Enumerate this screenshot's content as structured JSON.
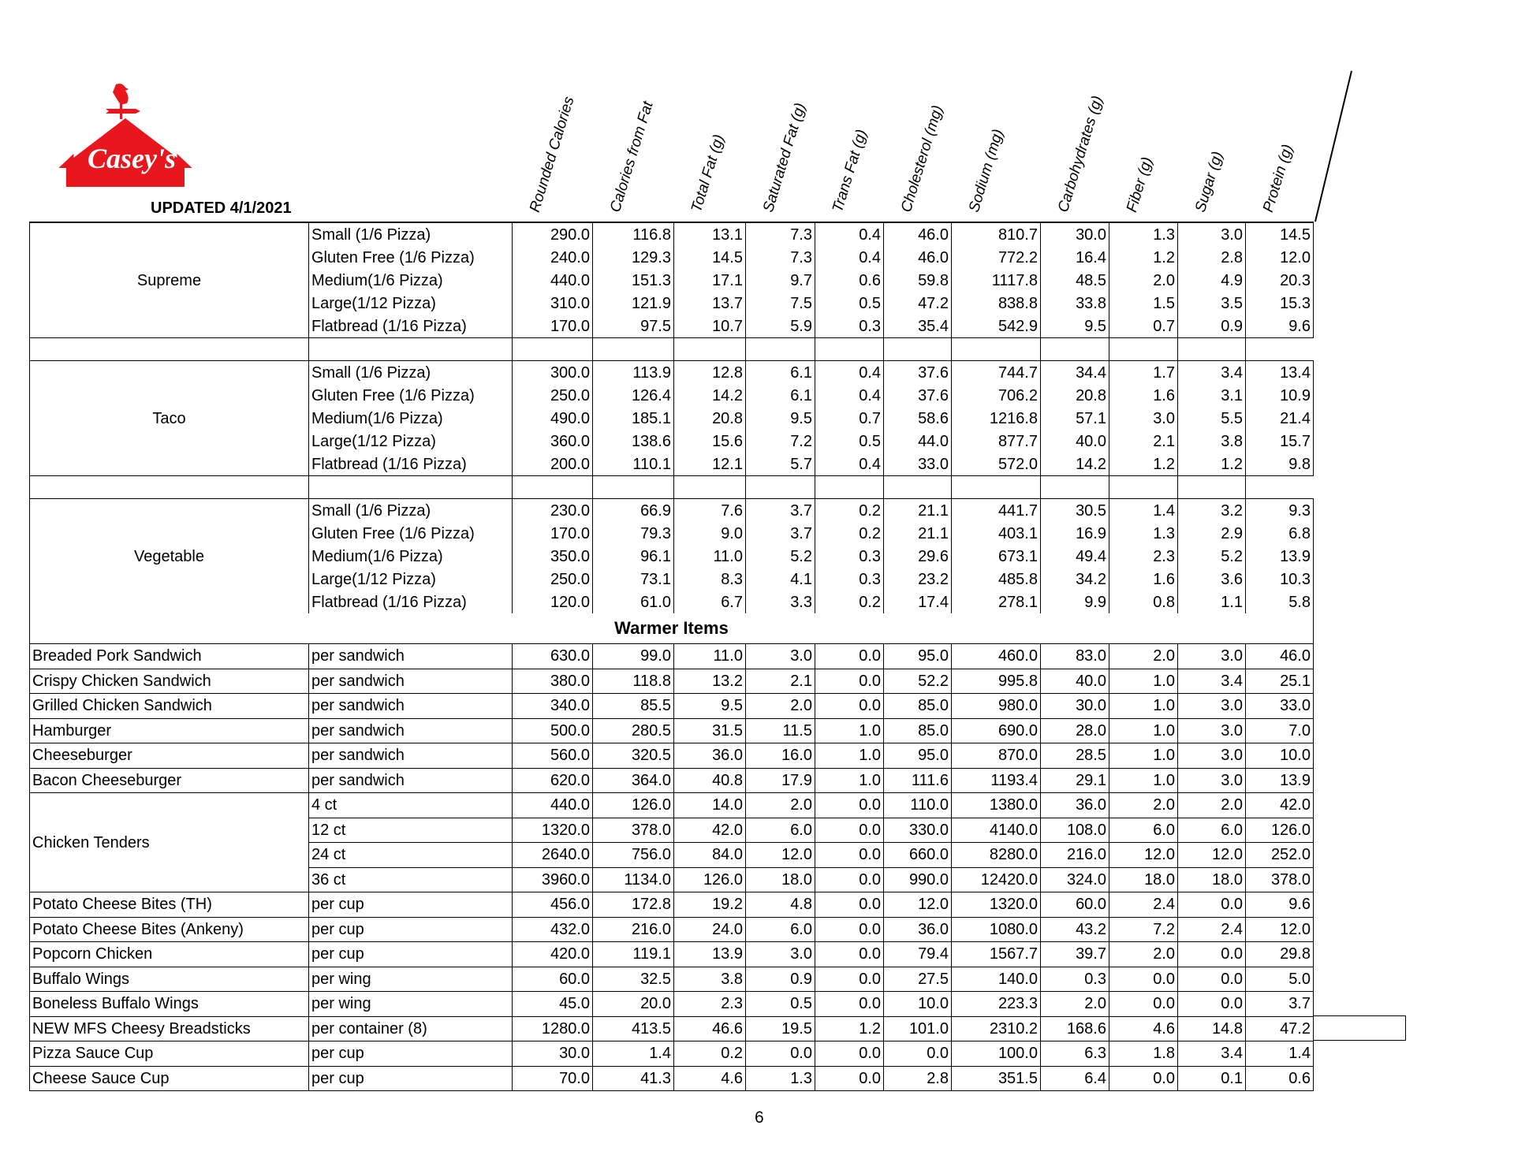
{
  "brand": {
    "logo_text": "Casey's",
    "red": "#e8161d"
  },
  "updated": "UPDATED 4/1/2021",
  "columns": [
    "Rounded Calories",
    "Calories from Fat",
    "Total Fat (g)",
    "Saturated Fat (g)",
    "Trans Fat (g)",
    "Cholesterol (mg)",
    "Sodium (mg)",
    "Carbohydrates (g)",
    "Fiber (g)",
    "Sugar (g)",
    "Protein (g)"
  ],
  "pizza_groups": [
    {
      "name": "Supreme",
      "rows": [
        {
          "size": "Small (1/6 Pizza)",
          "values": [
            "290.0",
            "116.8",
            "13.1",
            "7.3",
            "0.4",
            "46.0",
            "810.7",
            "30.0",
            "1.3",
            "3.0",
            "14.5"
          ]
        },
        {
          "size": "Gluten Free (1/6 Pizza)",
          "values": [
            "240.0",
            "129.3",
            "14.5",
            "7.3",
            "0.4",
            "46.0",
            "772.2",
            "16.4",
            "1.2",
            "2.8",
            "12.0"
          ]
        },
        {
          "size": "Medium(1/6 Pizza)",
          "values": [
            "440.0",
            "151.3",
            "17.1",
            "9.7",
            "0.6",
            "59.8",
            "1117.8",
            "48.5",
            "2.0",
            "4.9",
            "20.3"
          ]
        },
        {
          "size": "Large(1/12 Pizza)",
          "values": [
            "310.0",
            "121.9",
            "13.7",
            "7.5",
            "0.5",
            "47.2",
            "838.8",
            "33.8",
            "1.5",
            "3.5",
            "15.3"
          ]
        },
        {
          "size": "Flatbread (1/16 Pizza)",
          "values": [
            "170.0",
            "97.5",
            "10.7",
            "5.9",
            "0.3",
            "35.4",
            "542.9",
            "9.5",
            "0.7",
            "0.9",
            "9.6"
          ]
        }
      ]
    },
    {
      "name": "Taco",
      "rows": [
        {
          "size": "Small (1/6 Pizza)",
          "values": [
            "300.0",
            "113.9",
            "12.8",
            "6.1",
            "0.4",
            "37.6",
            "744.7",
            "34.4",
            "1.7",
            "3.4",
            "13.4"
          ]
        },
        {
          "size": "Gluten Free (1/6 Pizza)",
          "values": [
            "250.0",
            "126.4",
            "14.2",
            "6.1",
            "0.4",
            "37.6",
            "706.2",
            "20.8",
            "1.6",
            "3.1",
            "10.9"
          ]
        },
        {
          "size": "Medium(1/6 Pizza)",
          "values": [
            "490.0",
            "185.1",
            "20.8",
            "9.5",
            "0.7",
            "58.6",
            "1216.8",
            "57.1",
            "3.0",
            "5.5",
            "21.4"
          ]
        },
        {
          "size": "Large(1/12 Pizza)",
          "values": [
            "360.0",
            "138.6",
            "15.6",
            "7.2",
            "0.5",
            "44.0",
            "877.7",
            "40.0",
            "2.1",
            "3.8",
            "15.7"
          ]
        },
        {
          "size": "Flatbread (1/16 Pizza)",
          "values": [
            "200.0",
            "110.1",
            "12.1",
            "5.7",
            "0.4",
            "33.0",
            "572.0",
            "14.2",
            "1.2",
            "1.2",
            "9.8"
          ]
        }
      ]
    },
    {
      "name": "Vegetable",
      "rows": [
        {
          "size": "Small (1/6 Pizza)",
          "values": [
            "230.0",
            "66.9",
            "7.6",
            "3.7",
            "0.2",
            "21.1",
            "441.7",
            "30.5",
            "1.4",
            "3.2",
            "9.3"
          ]
        },
        {
          "size": "Gluten Free (1/6 Pizza)",
          "values": [
            "170.0",
            "79.3",
            "9.0",
            "3.7",
            "0.2",
            "21.1",
            "403.1",
            "16.9",
            "1.3",
            "2.9",
            "6.8"
          ]
        },
        {
          "size": "Medium(1/6 Pizza)",
          "values": [
            "350.0",
            "96.1",
            "11.0",
            "5.2",
            "0.3",
            "29.6",
            "673.1",
            "49.4",
            "2.3",
            "5.2",
            "13.9"
          ]
        },
        {
          "size": "Large(1/12 Pizza)",
          "values": [
            "250.0",
            "73.1",
            "8.3",
            "4.1",
            "0.3",
            "23.2",
            "485.8",
            "34.2",
            "1.6",
            "3.6",
            "10.3"
          ]
        },
        {
          "size": "Flatbread (1/16 Pizza)",
          "values": [
            "120.0",
            "61.0",
            "6.7",
            "3.3",
            "0.2",
            "17.4",
            "278.1",
            "9.9",
            "0.8",
            "1.1",
            "5.8"
          ]
        }
      ]
    }
  ],
  "warmer": {
    "title": "Warmer Items",
    "items": [
      {
        "name": "Breaded Pork Sandwich",
        "rows": [
          {
            "size": "per sandwich",
            "values": [
              "630.0",
              "99.0",
              "11.0",
              "3.0",
              "0.0",
              "95.0",
              "460.0",
              "83.0",
              "2.0",
              "3.0",
              "46.0"
            ]
          }
        ]
      },
      {
        "name": "Crispy Chicken Sandwich",
        "rows": [
          {
            "size": "per sandwich",
            "values": [
              "380.0",
              "118.8",
              "13.2",
              "2.1",
              "0.0",
              "52.2",
              "995.8",
              "40.0",
              "1.0",
              "3.4",
              "25.1"
            ]
          }
        ]
      },
      {
        "name": "Grilled Chicken Sandwich",
        "rows": [
          {
            "size": "per sandwich",
            "values": [
              "340.0",
              "85.5",
              "9.5",
              "2.0",
              "0.0",
              "85.0",
              "980.0",
              "30.0",
              "1.0",
              "3.0",
              "33.0"
            ]
          }
        ]
      },
      {
        "name": "Hamburger",
        "rows": [
          {
            "size": "per sandwich",
            "values": [
              "500.0",
              "280.5",
              "31.5",
              "11.5",
              "1.0",
              "85.0",
              "690.0",
              "28.0",
              "1.0",
              "3.0",
              "7.0"
            ]
          }
        ]
      },
      {
        "name": "Cheeseburger",
        "rows": [
          {
            "size": "per sandwich",
            "values": [
              "560.0",
              "320.5",
              "36.0",
              "16.0",
              "1.0",
              "95.0",
              "870.0",
              "28.5",
              "1.0",
              "3.0",
              "10.0"
            ]
          }
        ]
      },
      {
        "name": "Bacon Cheeseburger",
        "rows": [
          {
            "size": "per sandwich",
            "values": [
              "620.0",
              "364.0",
              "40.8",
              "17.9",
              "1.0",
              "111.6",
              "1193.4",
              "29.1",
              "1.0",
              "3.0",
              "13.9"
            ]
          }
        ]
      },
      {
        "name": "Chicken Tenders",
        "rows": [
          {
            "size": "4 ct",
            "values": [
              "440.0",
              "126.0",
              "14.0",
              "2.0",
              "0.0",
              "110.0",
              "1380.0",
              "36.0",
              "2.0",
              "2.0",
              "42.0"
            ]
          },
          {
            "size": "12 ct",
            "values": [
              "1320.0",
              "378.0",
              "42.0",
              "6.0",
              "0.0",
              "330.0",
              "4140.0",
              "108.0",
              "6.0",
              "6.0",
              "126.0"
            ]
          },
          {
            "size": "24 ct",
            "values": [
              "2640.0",
              "756.0",
              "84.0",
              "12.0",
              "0.0",
              "660.0",
              "8280.0",
              "216.0",
              "12.0",
              "12.0",
              "252.0"
            ]
          },
          {
            "size": "36 ct",
            "values": [
              "3960.0",
              "1134.0",
              "126.0",
              "18.0",
              "0.0",
              "990.0",
              "12420.0",
              "324.0",
              "18.0",
              "18.0",
              "378.0"
            ]
          }
        ]
      },
      {
        "name": "Potato Cheese Bites (TH)",
        "rows": [
          {
            "size": "per cup",
            "values": [
              "456.0",
              "172.8",
              "19.2",
              "4.8",
              "0.0",
              "12.0",
              "1320.0",
              "60.0",
              "2.4",
              "0.0",
              "9.6"
            ]
          }
        ]
      },
      {
        "name": "Potato Cheese Bites (Ankeny)",
        "rows": [
          {
            "size": "per cup",
            "values": [
              "432.0",
              "216.0",
              "24.0",
              "6.0",
              "0.0",
              "36.0",
              "1080.0",
              "43.2",
              "7.2",
              "2.4",
              "12.0"
            ]
          }
        ]
      },
      {
        "name": "Popcorn Chicken",
        "rows": [
          {
            "size": "per cup",
            "values": [
              "420.0",
              "119.1",
              "13.9",
              "3.0",
              "0.0",
              "79.4",
              "1567.7",
              "39.7",
              "2.0",
              "0.0",
              "29.8"
            ]
          }
        ]
      },
      {
        "name": "Buffalo Wings",
        "rows": [
          {
            "size": "per wing",
            "values": [
              "60.0",
              "32.5",
              "3.8",
              "0.9",
              "0.0",
              "27.5",
              "140.0",
              "0.3",
              "0.0",
              "0.0",
              "5.0"
            ]
          }
        ]
      },
      {
        "name": "Boneless Buffalo Wings",
        "rows": [
          {
            "size": "per wing",
            "values": [
              "45.0",
              "20.0",
              "2.3",
              "0.5",
              "0.0",
              "10.0",
              "223.3",
              "2.0",
              "0.0",
              "0.0",
              "3.7"
            ]
          }
        ]
      },
      {
        "name": "NEW MFS Cheesy Breadsticks",
        "rows": [
          {
            "size": "per container (8)",
            "values": [
              "1280.0",
              "413.5",
              "46.6",
              "19.5",
              "1.2",
              "101.0",
              "2310.2",
              "168.6",
              "4.6",
              "14.8",
              "47.2"
            ]
          }
        ]
      },
      {
        "name": "Pizza Sauce Cup",
        "rows": [
          {
            "size": "per cup",
            "values": [
              "30.0",
              "1.4",
              "0.2",
              "0.0",
              "0.0",
              "0.0",
              "100.0",
              "6.3",
              "1.8",
              "3.4",
              "1.4"
            ]
          }
        ]
      },
      {
        "name": "Cheese Sauce Cup",
        "rows": [
          {
            "size": "per cup",
            "values": [
              "70.0",
              "41.3",
              "4.6",
              "1.3",
              "0.0",
              "2.8",
              "351.5",
              "6.4",
              "0.0",
              "0.1",
              "0.6"
            ]
          }
        ]
      }
    ]
  },
  "page_number": "6"
}
